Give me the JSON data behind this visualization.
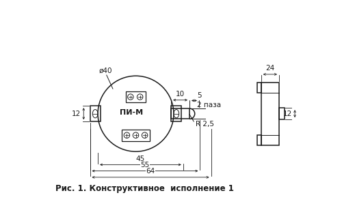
{
  "fig_width": 5.0,
  "fig_height": 3.24,
  "dpi": 100,
  "bg_color": "#ffffff",
  "line_color": "#1a1a1a",
  "lw_main": 1.1,
  "lw_thin": 0.7,
  "lw_dim": 0.6,
  "caption": "Рис. 1. Конструктивное  исполнение 1",
  "label_pi_m": "ПИ-М",
  "label_d40": "ø40",
  "label_12_left": "12",
  "label_45": "45",
  "label_55": "55",
  "label_64": "64",
  "label_10": "10",
  "label_5": "5",
  "label_2paza": "2 паза",
  "label_r25": "R 2,5",
  "label_24": "24",
  "label_12_right": "12"
}
